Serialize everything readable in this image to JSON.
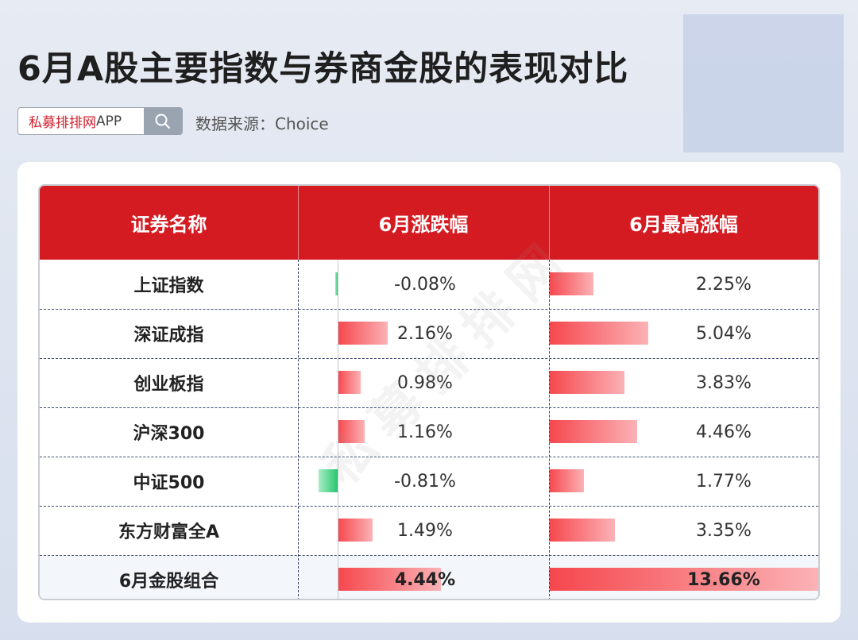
{
  "title": "6月A股主要指数与券商金股的表现对比",
  "search": {
    "brand": "私募排排网",
    "app": "APP"
  },
  "source": "数据来源：Choice",
  "watermark": "私募排排网",
  "chart_data": {
    "type": "table",
    "columns": [
      "证券名称",
      "6月涨跌幅",
      "6月最高涨幅"
    ],
    "rows": [
      {
        "name": "上证指数",
        "change": -0.08,
        "change_label": "-0.08%",
        "high": 2.25,
        "high_label": "2.25%"
      },
      {
        "name": "深证成指",
        "change": 2.16,
        "change_label": "2.16%",
        "high": 5.04,
        "high_label": "5.04%"
      },
      {
        "name": "创业板指",
        "change": 0.98,
        "change_label": "0.98%",
        "high": 3.83,
        "high_label": "3.83%"
      },
      {
        "name": "沪深300",
        "change": 1.16,
        "change_label": "1.16%",
        "high": 4.46,
        "high_label": "4.46%"
      },
      {
        "name": "中证500",
        "change": -0.81,
        "change_label": "-0.81%",
        "high": 1.77,
        "high_label": "1.77%"
      },
      {
        "name": "东方财富全A",
        "change": 1.49,
        "change_label": "1.49%",
        "high": 3.35,
        "high_label": "3.35%"
      },
      {
        "name": "6月金股组合",
        "change": 4.44,
        "change_label": "4.44%",
        "high": 13.66,
        "high_label": "13.66%",
        "highlight": true
      }
    ],
    "colors": {
      "header": "#d41b22",
      "positive": "#f5474d",
      "negative": "#27c66d"
    }
  }
}
